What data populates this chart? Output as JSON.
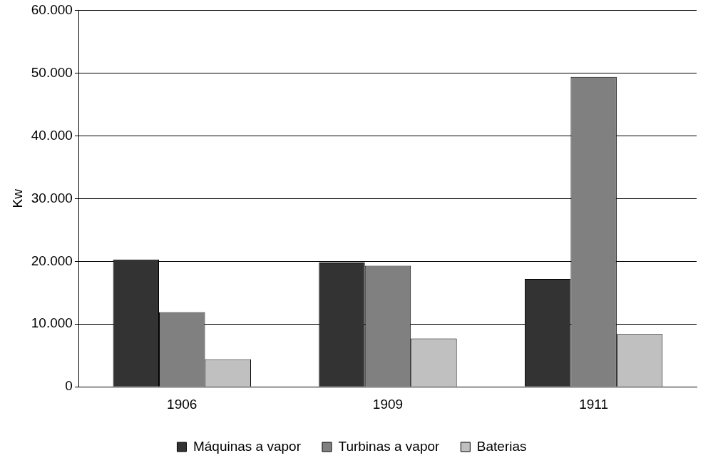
{
  "chart_data": {
    "type": "bar",
    "ylabel": "Kw",
    "categories": [
      "1906",
      "1909",
      "1911"
    ],
    "series": [
      {
        "name": "Máquinas a vapor",
        "color": "#333333",
        "values": [
          20300,
          19800,
          17200
        ]
      },
      {
        "name": "Turbinas a vapor",
        "color": "#808080",
        "values": [
          11900,
          19300,
          49400
        ]
      },
      {
        "name": "Baterias",
        "color": "#c0c0c0",
        "values": [
          4400,
          7700,
          8400
        ]
      }
    ],
    "ylim": [
      0,
      60000
    ],
    "yticks": [
      {
        "value": 0,
        "label": "0"
      },
      {
        "value": 10000,
        "label": "10.000"
      },
      {
        "value": 20000,
        "label": "20.000"
      },
      {
        "value": 30000,
        "label": "30.000"
      },
      {
        "value": 40000,
        "label": "40.000"
      },
      {
        "value": 50000,
        "label": "50.000"
      },
      {
        "value": 60000,
        "label": "60.000"
      }
    ],
    "grid": "y",
    "legend": "bottom"
  }
}
